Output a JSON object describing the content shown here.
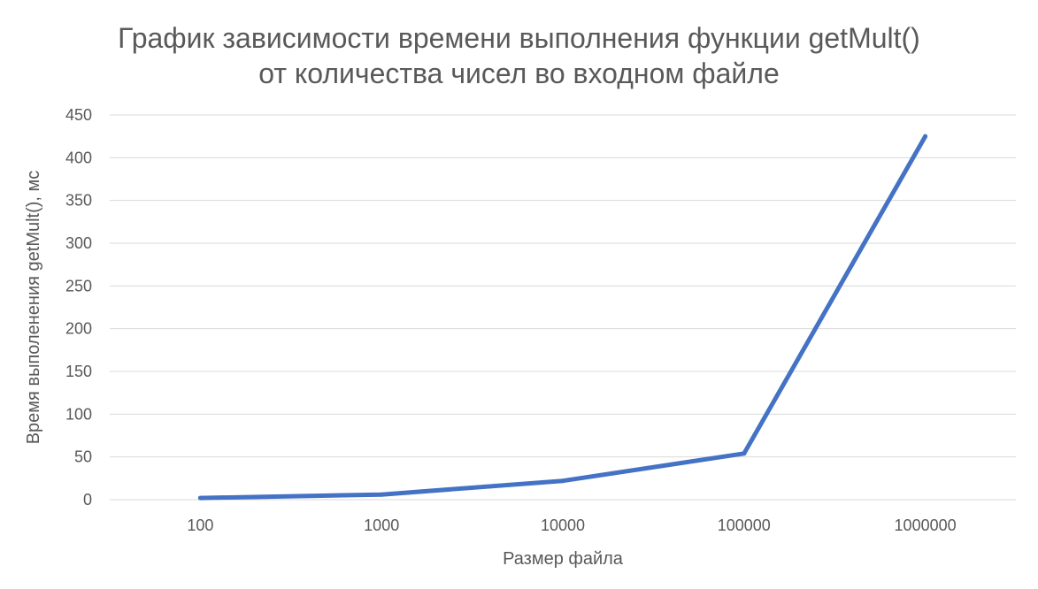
{
  "chart_data": {
    "type": "line",
    "title_lines": [
      "График зависимости времени выполнения функции getMult()",
      "от количества чисел во входном файле"
    ],
    "xlabel": "Размер файла",
    "ylabel": "Время выполенения getMult(), мс",
    "categories": [
      "100",
      "1000",
      "10000",
      "100000",
      "1000000"
    ],
    "series": [
      {
        "values": [
          2,
          6,
          22,
          54,
          425
        ],
        "color": "#4472c4"
      }
    ],
    "ylim": [
      0,
      450
    ],
    "yticks": [
      0,
      50,
      100,
      150,
      200,
      250,
      300,
      350,
      400,
      450
    ],
    "grid": true,
    "legend": "none"
  }
}
